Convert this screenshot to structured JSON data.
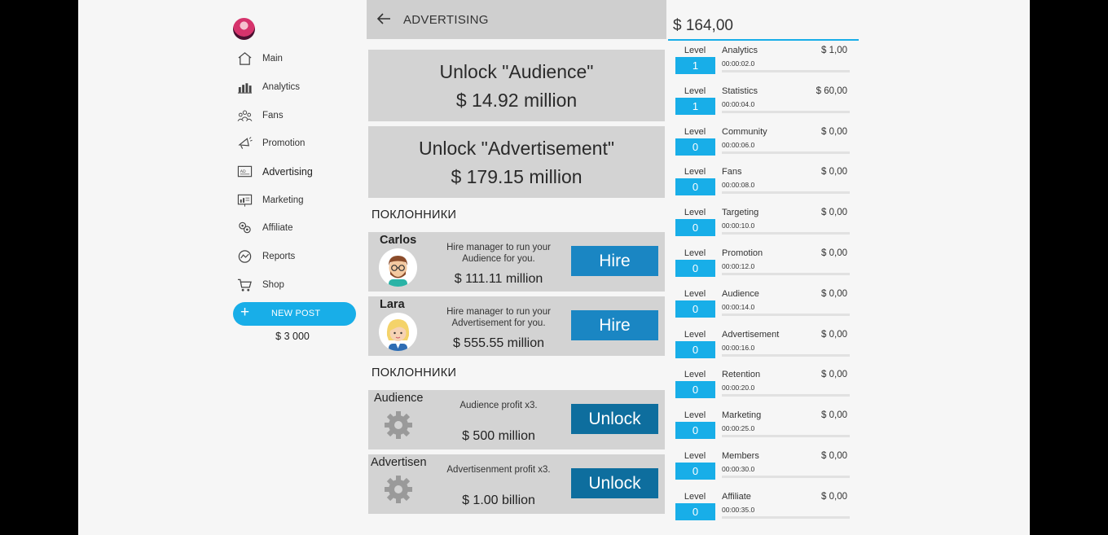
{
  "sidebar": {
    "items": [
      {
        "label": "Main",
        "icon": "home-icon"
      },
      {
        "label": "Analytics",
        "icon": "bar-chart-icon"
      },
      {
        "label": "Fans",
        "icon": "people-icon"
      },
      {
        "label": "Promotion",
        "icon": "megaphone-icon"
      },
      {
        "label": "Advertising",
        "icon": "ad-board-icon"
      },
      {
        "label": "Marketing",
        "icon": "marketing-board-icon"
      },
      {
        "label": "Affiliate",
        "icon": "affiliate-icon"
      },
      {
        "label": "Reports",
        "icon": "reports-icon"
      },
      {
        "label": "Shop",
        "icon": "cart-icon"
      }
    ],
    "active_index": 4,
    "new_post": {
      "icon_glyph": "+",
      "label": "NEW POST"
    },
    "money": "$ 3 000"
  },
  "center": {
    "title": "ADVERTISING",
    "unlocks": [
      {
        "title": "Unlock \"Audience\"",
        "price": "$ 14.92 million"
      },
      {
        "title": "Unlock \"Advertisement\"",
        "price": "$ 179.15 million"
      }
    ],
    "managers_heading": "ПОКЛОННИКИ",
    "managers": [
      {
        "name": "Carlos",
        "description": "Hire manager to run your Audience for you.",
        "price": "$ 111.11 million",
        "button": "Hire"
      },
      {
        "name": "Lara",
        "description": "Hire manager to run your Advertisement for you.",
        "price": "$ 555.55 million",
        "button": "Hire"
      }
    ],
    "upgrades_heading": "ПОКЛОННИКИ",
    "upgrades": [
      {
        "name": "Audience",
        "description": "Audience profit x3.",
        "price": "$ 500 million",
        "button": "Unlock"
      },
      {
        "name": "Advertisen",
        "description": "Advertisenment profit x3.",
        "price": "$ 1.00 billion",
        "button": "Unlock"
      }
    ]
  },
  "right": {
    "balance": "$ 164,00",
    "level_label": "Level",
    "businesses": [
      {
        "name": "Analytics",
        "price": "$ 1,00",
        "time": "00:00:02.0",
        "level": "1"
      },
      {
        "name": "Statistics",
        "price": "$ 60,00",
        "time": "00:00:04.0",
        "level": "1"
      },
      {
        "name": "Community",
        "price": "$ 0,00",
        "time": "00:00:06.0",
        "level": "0"
      },
      {
        "name": "Fans",
        "price": "$ 0,00",
        "time": "00:00:08.0",
        "level": "0"
      },
      {
        "name": "Targeting",
        "price": "$ 0,00",
        "time": "00:00:10.0",
        "level": "0"
      },
      {
        "name": "Promotion",
        "price": "$ 0,00",
        "time": "00:00:12.0",
        "level": "0"
      },
      {
        "name": "Audience",
        "price": "$ 0,00",
        "time": "00:00:14.0",
        "level": "0"
      },
      {
        "name": "Advertisement",
        "price": "$ 0,00",
        "time": "00:00:16.0",
        "level": "0"
      },
      {
        "name": "Retention",
        "price": "$ 0,00",
        "time": "00:00:20.0",
        "level": "0"
      },
      {
        "name": "Marketing",
        "price": "$ 0,00",
        "time": "00:00:25.0",
        "level": "0"
      },
      {
        "name": "Members",
        "price": "$ 0,00",
        "time": "00:00:30.0",
        "level": "0"
      },
      {
        "name": "Affiliate",
        "price": "$ 0,00",
        "time": "00:00:35.0",
        "level": "0"
      }
    ]
  }
}
